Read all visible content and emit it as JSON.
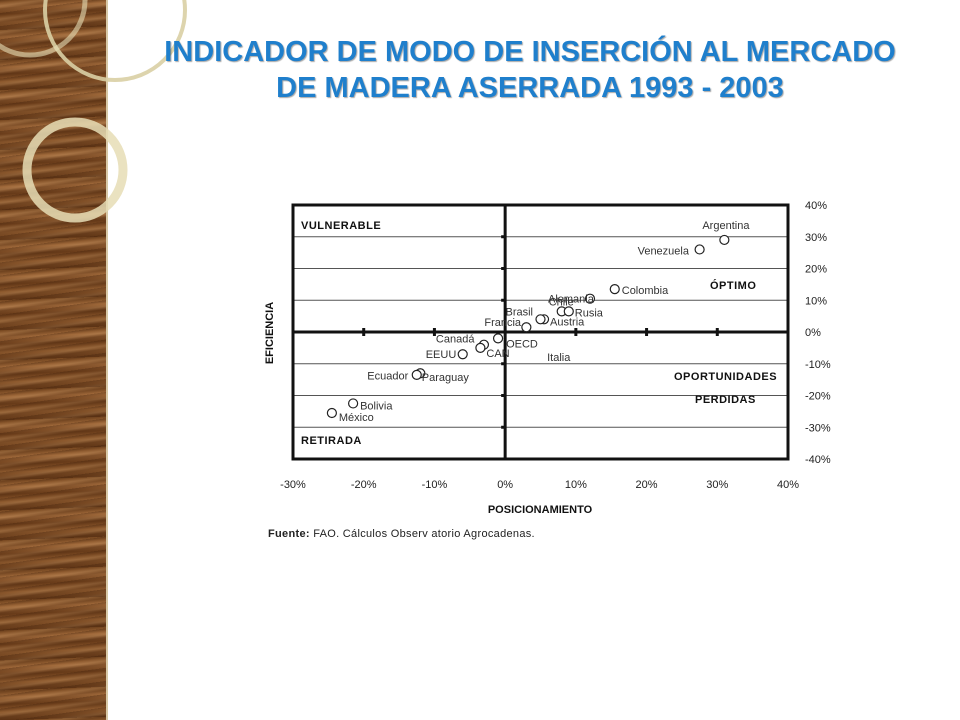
{
  "title": {
    "line1": "INDICADOR DE MODO DE INSERCIÓN AL MERCADO",
    "line2": "DE MADERA ASERRADA 1993 - 2003"
  },
  "source": {
    "label": "Fuente:",
    "text": "FAO. Cálculos Observ atorio Agrocadenas."
  },
  "chart_data": {
    "type": "scatter",
    "xlabel": "POSICIONAMIENTO",
    "ylabel": "EFICIENCIA",
    "xlim": [
      -30,
      40
    ],
    "ylim": [
      -40,
      40
    ],
    "x_ticks": [
      "-30%",
      "-20%",
      "-10%",
      "0%",
      "10%",
      "20%",
      "30%",
      "40%"
    ],
    "y_ticks": [
      "40%",
      "30%",
      "20%",
      "10%",
      "0%",
      "-10%",
      "-20%",
      "-30%",
      "-40%"
    ],
    "grid": true,
    "quadrants": {
      "top_left": "VULNERABLE",
      "top_right": "ÓPTIMO",
      "bottom_right_1": "OPORTUNIDADES",
      "bottom_right_2": "PERDIDAS",
      "bottom_left": "RETIRADA"
    },
    "points": [
      {
        "label": "Argentina",
        "x": 31.0,
        "y": 29.0
      },
      {
        "label": "Venezuela",
        "x": 27.5,
        "y": 26.0
      },
      {
        "label": "Colombia",
        "x": 15.5,
        "y": 13.5
      },
      {
        "label": "Alemania",
        "x": 12.0,
        "y": 10.5
      },
      {
        "label": "Chile",
        "x": 8.0,
        "y": 6.5
      },
      {
        "label": "Rusia",
        "x": 9.0,
        "y": 6.5
      },
      {
        "label": "Austria",
        "x": 5.5,
        "y": 4.0
      },
      {
        "label": "Brasil",
        "x": 5.0,
        "y": 4.0
      },
      {
        "label": "Francia",
        "x": 3.0,
        "y": 1.5
      },
      {
        "label": "OECD",
        "x": -1.0,
        "y": -2.0
      },
      {
        "label": "Canadá",
        "x": -3.0,
        "y": -4.0
      },
      {
        "label": "CAN",
        "x": -3.5,
        "y": -5.0
      },
      {
        "label": "EEUU",
        "x": -6.0,
        "y": -7.0
      },
      {
        "label": "Italia",
        "x": 6.5,
        "y": -7.5
      },
      {
        "label": "Ecuador",
        "x": -12.0,
        "y": -13.0
      },
      {
        "label": "Paraguay",
        "x": -12.5,
        "y": -13.5
      },
      {
        "label": "Bolivia",
        "x": -21.5,
        "y": -22.5
      },
      {
        "label": "México",
        "x": -24.5,
        "y": -25.5
      }
    ]
  }
}
